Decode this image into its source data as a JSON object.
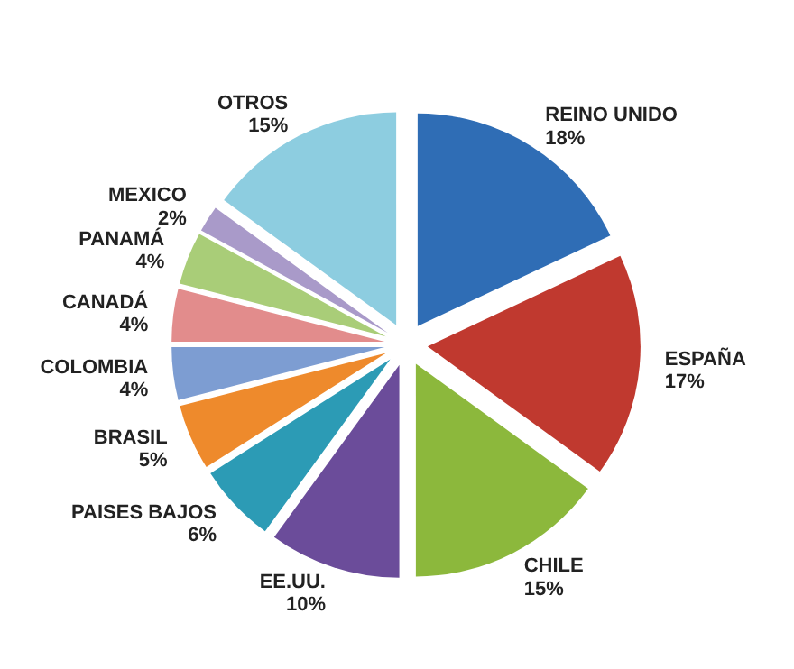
{
  "chart_data": {
    "type": "pie",
    "categories": [
      "REINO UNIDO",
      "ESPAÑA",
      "CHILE",
      "EE.UU.",
      "PAISES BAJOS",
      "BRASIL",
      "COLOMBIA",
      "CANADÁ",
      "PANAMÁ",
      "MEXICO",
      "OTROS"
    ],
    "values": [
      18,
      17,
      15,
      10,
      6,
      5,
      4,
      4,
      4,
      2,
      15
    ],
    "value_labels": [
      "18%",
      "17%",
      "15%",
      "10%",
      "6%",
      "5%",
      "4%",
      "4%",
      "4%",
      "2%",
      "15%"
    ],
    "colors": [
      "#2f6db5",
      "#c0392f",
      "#8cb83c",
      "#6b4c9a",
      "#2c9bb5",
      "#ee8a2c",
      "#7d9dd2",
      "#e28c8c",
      "#a9cd78",
      "#a99ac9",
      "#8dcde0"
    ]
  }
}
